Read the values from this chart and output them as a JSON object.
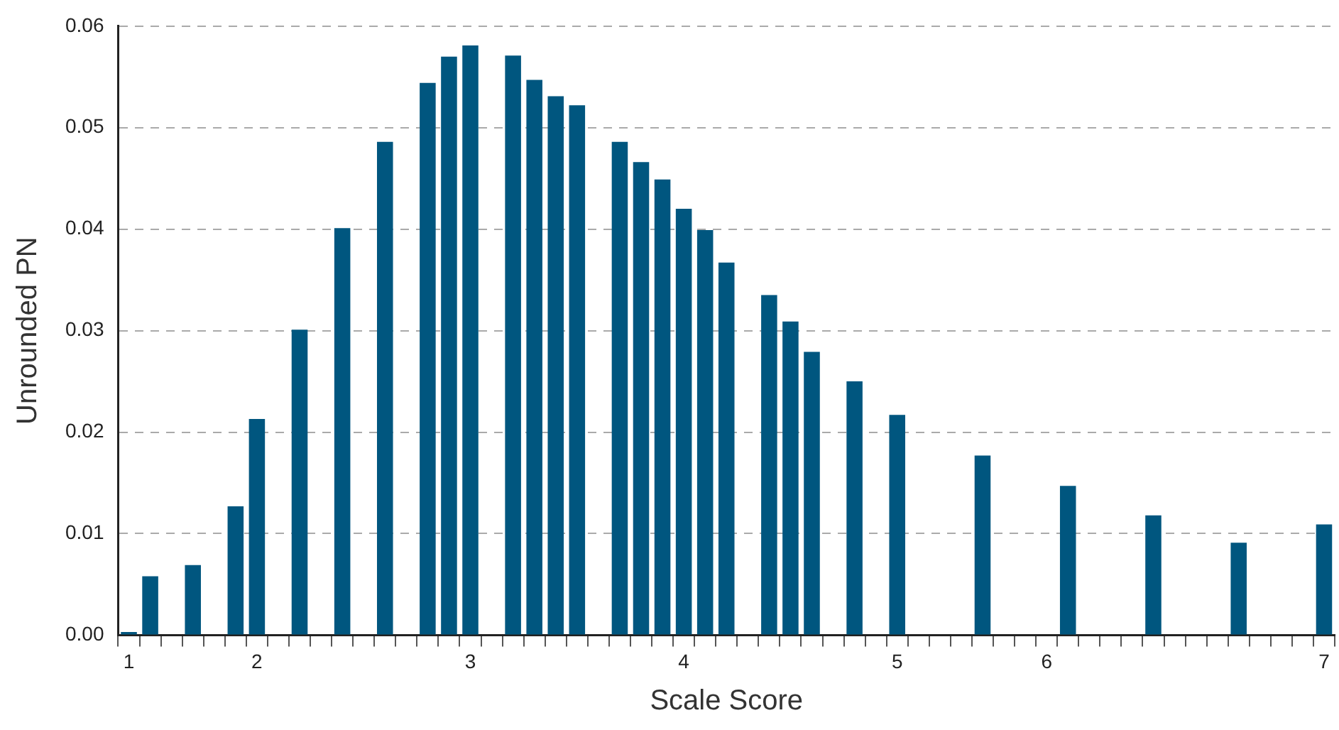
{
  "chart_data": {
    "type": "bar",
    "xlabel": "Scale Score",
    "ylabel": "Unrounded PN",
    "categories": [
      "1",
      null,
      null,
      null,
      null,
      null,
      "2",
      null,
      null,
      null,
      null,
      null,
      null,
      null,
      null,
      null,
      "3",
      null,
      null,
      null,
      null,
      null,
      null,
      null,
      null,
      null,
      "4",
      null,
      null,
      null,
      null,
      null,
      null,
      null,
      null,
      null,
      "5",
      null,
      null,
      null,
      null,
      null,
      null,
      "6",
      null,
      null,
      null,
      null,
      null,
      null,
      null,
      null,
      null,
      null,
      null,
      null,
      "7"
    ],
    "values": [
      0.0003,
      0.0058,
      null,
      0.0069,
      null,
      0.0127,
      0.0213,
      null,
      0.0301,
      null,
      0.0401,
      null,
      0.0486,
      null,
      0.0544,
      0.057,
      0.0581,
      null,
      0.0571,
      0.0547,
      0.0531,
      0.0522,
      null,
      0.0486,
      0.0466,
      0.0449,
      0.042,
      0.0399,
      0.0367,
      null,
      0.0335,
      0.0309,
      0.0279,
      null,
      0.025,
      null,
      0.0217,
      null,
      null,
      null,
      0.0177,
      null,
      null,
      null,
      0.0147,
      null,
      null,
      null,
      0.0118,
      null,
      null,
      null,
      0.0091,
      null,
      null,
      null,
      0.0109
    ],
    "color": "#00567f",
    "ylim": [
      0,
      0.06
    ],
    "yticks": [
      {
        "value": 0,
        "label": "0.00"
      },
      {
        "value": 0.01,
        "label": "0.01"
      },
      {
        "value": 0.02,
        "label": "0.02"
      },
      {
        "value": 0.03,
        "label": "0.03"
      },
      {
        "value": 0.04,
        "label": "0.04"
      },
      {
        "value": 0.05,
        "label": "0.05"
      },
      {
        "value": 0.06,
        "label": "0.06"
      }
    ],
    "grid": "y",
    "legend": false
  }
}
